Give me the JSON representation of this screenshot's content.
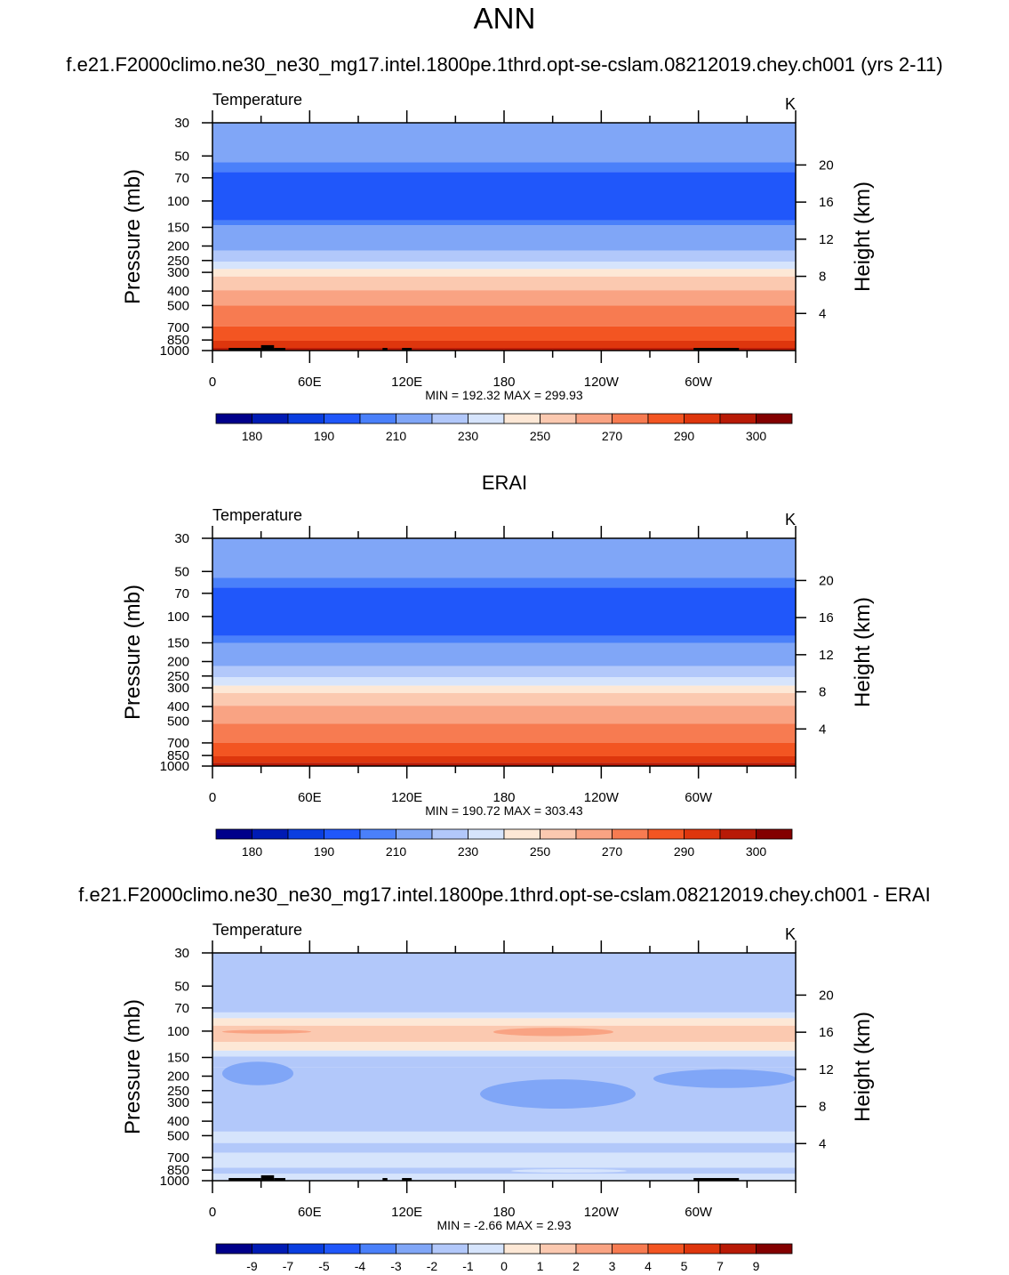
{
  "figure": {
    "title": "ANN",
    "panel_titles": [
      "f.e21.F2000climo.ne30_ne30_mg17.intel.1800pe.1thrd.opt-se-cslam.08212019.chey.ch001 (yrs 2-11)",
      "ERAI",
      "f.e21.F2000climo.ne30_ne30_mg17.intel.1800pe.1thrd.opt-se-cslam.08212019.chey.ch001 - ERAI"
    ]
  },
  "chart_data": [
    {
      "type": "heatmap",
      "variable": "Temperature",
      "units": "K",
      "ylabel": "Pressure (mb)",
      "ylabel_right": "Height (km)",
      "x_ticks": [
        "0",
        "60E",
        "120E",
        "180",
        "120W",
        "60W"
      ],
      "y_ticks": [
        30,
        50,
        70,
        100,
        150,
        200,
        250,
        300,
        400,
        500,
        700,
        850,
        1000
      ],
      "y_scale": "log",
      "ylim": [
        1000,
        30
      ],
      "right_ticks": [
        20,
        16,
        12,
        8,
        4
      ],
      "stats": "MIN = 192.32  MAX = 299.93",
      "colorbar_labels": [
        "180",
        "190",
        "210",
        "230",
        "250",
        "270",
        "290",
        "300"
      ],
      "colors": [
        "#00008a",
        "#001bb4",
        "#0a3ee0",
        "#2057fa",
        "#4a80fa",
        "#80a6f7",
        "#b2c8fa",
        "#d6e4fc",
        "#fde8d6",
        "#fbc9b0",
        "#f9a383",
        "#f77b51",
        "#f35522",
        "#de360d",
        "#b81a06",
        "#830000"
      ]
    },
    {
      "type": "heatmap",
      "variable": "Temperature",
      "units": "K",
      "ylabel": "Pressure (mb)",
      "ylabel_right": "Height (km)",
      "x_ticks": [
        "0",
        "60E",
        "120E",
        "180",
        "120W",
        "60W"
      ],
      "y_ticks": [
        30,
        50,
        70,
        100,
        150,
        200,
        250,
        300,
        400,
        500,
        700,
        850,
        1000
      ],
      "y_scale": "log",
      "ylim": [
        1000,
        30
      ],
      "right_ticks": [
        20,
        16,
        12,
        8,
        4
      ],
      "stats": "MIN = 190.72  MAX = 303.43",
      "colorbar_labels": [
        "180",
        "190",
        "210",
        "230",
        "250",
        "270",
        "290",
        "300"
      ],
      "colors": [
        "#00008a",
        "#001bb4",
        "#0a3ee0",
        "#2057fa",
        "#4a80fa",
        "#80a6f7",
        "#b2c8fa",
        "#d6e4fc",
        "#fde8d6",
        "#fbc9b0",
        "#f9a383",
        "#f77b51",
        "#f35522",
        "#de360d",
        "#b81a06",
        "#830000"
      ]
    },
    {
      "type": "heatmap",
      "variable": "Temperature",
      "units": "K",
      "ylabel": "Pressure (mb)",
      "ylabel_right": "Height (km)",
      "x_ticks": [
        "0",
        "60E",
        "120E",
        "180",
        "120W",
        "60W"
      ],
      "y_ticks": [
        30,
        50,
        70,
        100,
        150,
        200,
        250,
        300,
        400,
        500,
        700,
        850,
        1000
      ],
      "y_scale": "log",
      "ylim": [
        1000,
        30
      ],
      "right_ticks": [
        20,
        16,
        12,
        8,
        4
      ],
      "stats": "MIN =  -2.66  MAX =   2.93",
      "colorbar_labels": [
        "-9",
        "-7",
        "-5",
        "-4",
        "-3",
        "-2",
        "-1",
        "0",
        "1",
        "2",
        "3",
        "4",
        "5",
        "7",
        "9"
      ],
      "colors": [
        "#00008a",
        "#001bb4",
        "#0a3ee0",
        "#2057fa",
        "#4a80fa",
        "#80a6f7",
        "#b2c8fa",
        "#d6e4fc",
        "#fde8d6",
        "#fbc9b0",
        "#f9a383",
        "#f77b51",
        "#f35522",
        "#de360d",
        "#b81a06",
        "#830000"
      ]
    }
  ]
}
